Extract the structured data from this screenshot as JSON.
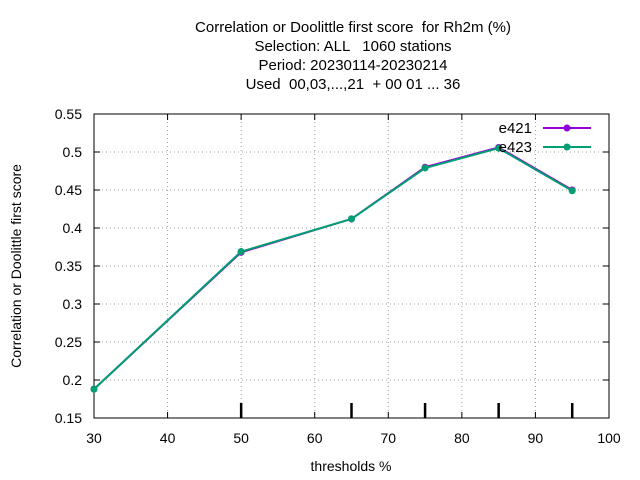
{
  "chart_data": {
    "type": "line",
    "title_lines": [
      "Correlation or Doolittle first score  for Rh2m (%)",
      "Selection: ALL   1060 stations",
      "Period: 20230114-20230214",
      "Used  00,03,...,21  + 00 01 ... 36"
    ],
    "xlabel": "thresholds %",
    "ylabel": "Correlation or Doolittle first score",
    "xlim": [
      30,
      100
    ],
    "ylim": [
      0.15,
      0.55
    ],
    "xticks": [
      30,
      40,
      50,
      60,
      70,
      80,
      90,
      100
    ],
    "xtick_labels": [
      "30",
      "40",
      "50",
      "60",
      "70",
      "80",
      "90",
      "100"
    ],
    "yticks": [
      0.15,
      0.2,
      0.25,
      0.3,
      0.35,
      0.4,
      0.45,
      0.5,
      0.55
    ],
    "ytick_labels": [
      "0.15",
      "0.2",
      "0.25",
      "0.3",
      "0.35",
      "0.4",
      "0.45",
      "0.5",
      "0.55"
    ],
    "grid": true,
    "legend_position": "top-right",
    "sample_ticks_x": [
      50,
      65,
      75,
      85,
      95
    ],
    "series": [
      {
        "name": "e421",
        "color": "#9400d3",
        "x": [
          30,
          50,
          65,
          75,
          85,
          95
        ],
        "values": [
          0.188,
          0.368,
          0.412,
          0.48,
          0.506,
          0.45
        ]
      },
      {
        "name": "e423",
        "color": "#009e73",
        "x": [
          30,
          50,
          65,
          75,
          85,
          95
        ],
        "values": [
          0.188,
          0.369,
          0.412,
          0.479,
          0.505,
          0.449
        ]
      }
    ]
  }
}
